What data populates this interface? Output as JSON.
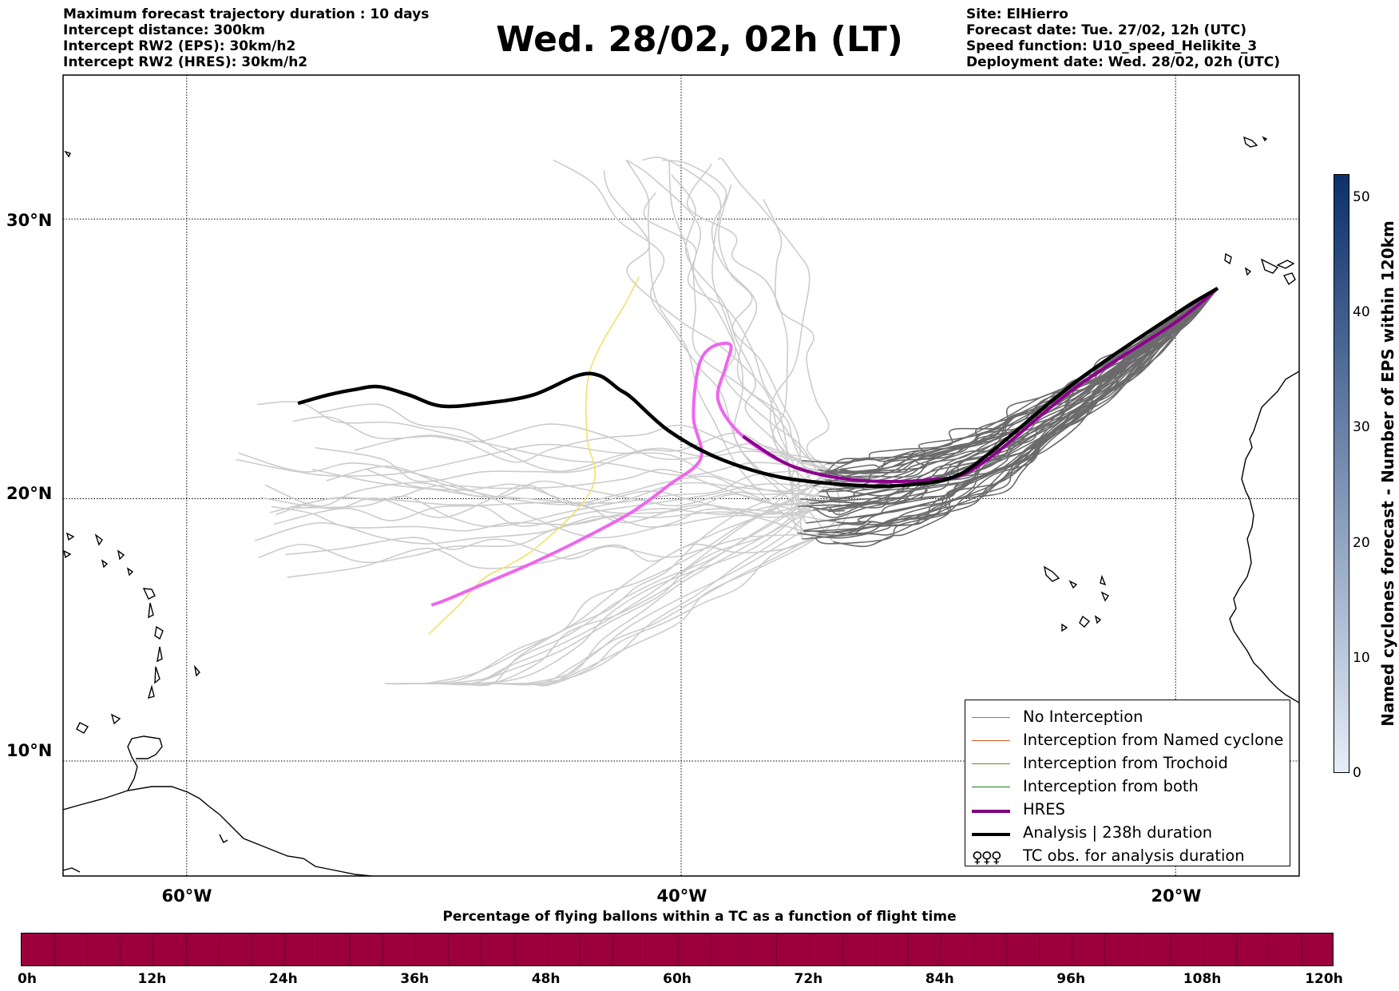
{
  "header": {
    "left_lines": [
      "Maximum forecast trajectory duration : 10 days",
      "Intercept distance: 300km",
      "Intercept RW2 (EPS):  30km/h2",
      "Intercept RW2 (HRES): 30km/h2"
    ],
    "title": "Wed. 28/02, 02h (LT)",
    "right_lines": [
      "Site: ElHierro",
      "Forecast date: Tue. 27/02, 12h (UTC)",
      "Speed function: U10_speed_Helikite_3",
      "Deployment date: Wed. 28/02, 02h (UTC)"
    ]
  },
  "map": {
    "extent": {
      "lon": [
        -65,
        -15
      ],
      "lat": [
        5.5,
        34.8
      ]
    },
    "lat_labels": [
      {
        "lat": 30,
        "text": "30°N"
      },
      {
        "lat": 20,
        "text": "20°N"
      },
      {
        "lat": 10,
        "text": "10°N"
      }
    ],
    "lon_labels": [
      {
        "lon": -60,
        "text": "60°W"
      },
      {
        "lon": -40,
        "text": "40°W"
      },
      {
        "lon": -20,
        "text": "20°W"
      }
    ],
    "colors": {
      "eps_no_interception_far": "#cccccc",
      "eps_no_interception_near": "#6b6b6b",
      "yellow_track": "#f0e060",
      "hres_forecast": "#ee66ee",
      "hres_deployment": "#8b008b",
      "analysis": "#000000"
    },
    "analysis_track": [
      [
        -18.3,
        27.6
      ],
      [
        -20,
        26.7
      ],
      [
        -24,
        24.3
      ],
      [
        -27.5,
        21.7
      ],
      [
        -29,
        20.8
      ],
      [
        -31,
        20.5
      ],
      [
        -33,
        20.5
      ],
      [
        -36,
        20.8
      ],
      [
        -38.5,
        21.5
      ],
      [
        -40.5,
        22.5
      ],
      [
        -42,
        23.7
      ],
      [
        -42.5,
        24.0
      ],
      [
        -43.3,
        24.5
      ],
      [
        -44.2,
        24.5
      ],
      [
        -46,
        23.8
      ],
      [
        -48,
        23.5
      ],
      [
        -49.7,
        23.4
      ],
      [
        -51,
        23.8
      ],
      [
        -52.2,
        24.1
      ],
      [
        -53.2,
        24.0
      ],
      [
        -54.3,
        23.8
      ],
      [
        -55.5,
        23.5
      ]
    ],
    "hres_track": [
      [
        -18.3,
        27.6
      ],
      [
        -20,
        26.4
      ],
      [
        -24,
        24.1
      ],
      [
        -28,
        21.2
      ],
      [
        -30,
        20.7
      ],
      [
        -33,
        20.7
      ],
      [
        -35.5,
        21.2
      ],
      [
        -37.5,
        22.3
      ],
      [
        -38.5,
        23.6
      ],
      [
        -38.2,
        24.8
      ],
      [
        -38.0,
        25.6
      ],
      [
        -38.8,
        25.5
      ],
      [
        -39.3,
        24.8
      ],
      [
        -39.5,
        23.0
      ],
      [
        -39.2,
        21.5
      ],
      [
        -40.5,
        20.5
      ],
      [
        -42,
        19.5
      ],
      [
        -44,
        18.5
      ],
      [
        -46,
        17.6
      ],
      [
        -48,
        16.8
      ],
      [
        -49.5,
        16.2
      ],
      [
        -50.1,
        16.0
      ]
    ],
    "yellow_track": [
      [
        -41.7,
        28.0
      ],
      [
        -42.3,
        27.0
      ],
      [
        -43.3,
        25.5
      ],
      [
        -43.8,
        24.2
      ],
      [
        -43.8,
        22.2
      ],
      [
        -43.5,
        21.2
      ],
      [
        -43.6,
        20.4
      ],
      [
        -44.3,
        19.5
      ],
      [
        -45.2,
        18.7
      ],
      [
        -46.1,
        18.0
      ],
      [
        -47.0,
        17.5
      ],
      [
        -48.0,
        17.0
      ],
      [
        -49.0,
        16.0
      ],
      [
        -50.2,
        14.9
      ]
    ],
    "land_labels": []
  },
  "legend": {
    "items": [
      {
        "label": "No Interception",
        "color": "#808080",
        "width": 1.5
      },
      {
        "label": "Interception from Named cyclone",
        "color": "#e05a20",
        "width": 1.5
      },
      {
        "label": "Interception from Trochoid",
        "color": "#808020",
        "width": 1.5
      },
      {
        "label": "Interception from both",
        "color": "#208020",
        "width": 1.5
      },
      {
        "label": "HRES",
        "color": "#800080",
        "width": 4
      },
      {
        "label": "Analysis | 238h duration",
        "color": "#000000",
        "width": 4
      },
      {
        "label": "TC obs. for analysis duration",
        "symbol": "♀♀♀"
      }
    ]
  },
  "colorbar_vertical": {
    "label": "Named cyclones forecast - Number of EPS within 120km",
    "range": [
      0,
      52
    ],
    "ticks": [
      "0",
      "10",
      "20",
      "30",
      "40",
      "50"
    ],
    "color_low": "#e6eef8",
    "color_high": "#0b306b"
  },
  "colorbar_horizontal": {
    "title": "Percentage of flying ballons within a TC as a function of flight time",
    "color": "#9b003c",
    "ticks": [
      "0h",
      "12h",
      "24h",
      "36h",
      "48h",
      "60h",
      "72h",
      "84h",
      "96h",
      "108h",
      "120h"
    ]
  }
}
